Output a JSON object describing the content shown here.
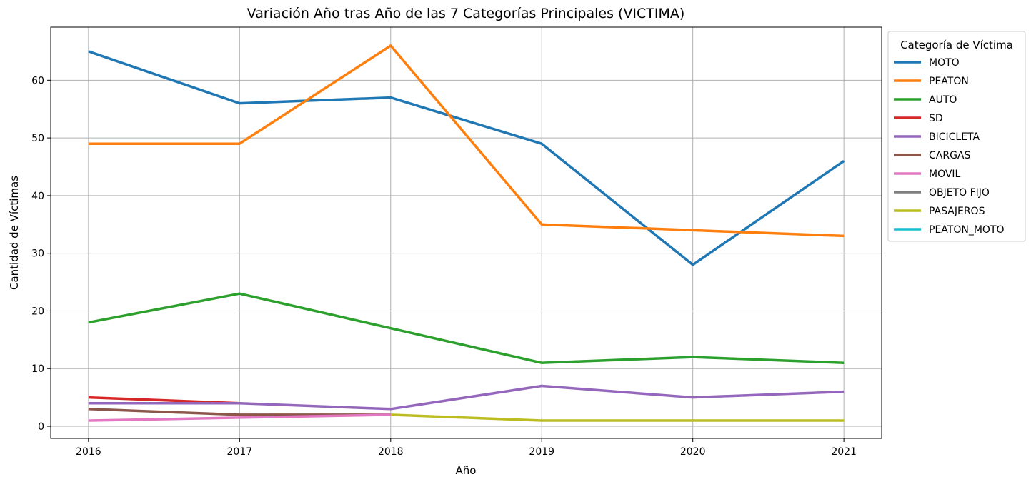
{
  "chart_data": {
    "type": "line",
    "title": "Variación Año tras Año de las 7 Categorías Principales (VICTIMA)",
    "xlabel": "Año",
    "ylabel": "Cantidad de Víctimas",
    "x": [
      2016,
      2017,
      2018,
      2019,
      2020,
      2021
    ],
    "x_tick_labels": [
      "2016",
      "2017",
      "2018",
      "2019",
      "2020",
      "2021"
    ],
    "y_ticks": [
      0,
      10,
      20,
      30,
      40,
      50,
      60
    ],
    "y_tick_labels": [
      "0",
      "10",
      "20",
      "30",
      "40",
      "50",
      "60"
    ],
    "xlim": [
      2015.75,
      2021.25
    ],
    "ylim": [
      -2.1,
      69.2
    ],
    "grid": true,
    "legend": {
      "title": "Categoría de Víctima",
      "placement": "outside-upper-right"
    },
    "series": [
      {
        "name": "MOTO",
        "color": "#1f77b4",
        "points": [
          [
            2016,
            65
          ],
          [
            2017,
            56
          ],
          [
            2018,
            57
          ],
          [
            2019,
            49
          ],
          [
            2020,
            28
          ],
          [
            2021,
            46
          ]
        ]
      },
      {
        "name": "PEATON",
        "color": "#ff7f0e",
        "points": [
          [
            2016,
            49
          ],
          [
            2017,
            49
          ],
          [
            2018,
            66
          ],
          [
            2019,
            35
          ],
          [
            2020,
            34
          ],
          [
            2021,
            33
          ]
        ]
      },
      {
        "name": "AUTO",
        "color": "#2ca02c",
        "points": [
          [
            2016,
            18
          ],
          [
            2017,
            23
          ],
          [
            2018,
            17
          ],
          [
            2019,
            11
          ],
          [
            2020,
            12
          ],
          [
            2021,
            11
          ]
        ]
      },
      {
        "name": "SD",
        "color": "#d62728",
        "points": [
          [
            2016,
            5
          ],
          [
            2017,
            4
          ]
        ]
      },
      {
        "name": "BICICLETA",
        "color": "#9467bd",
        "points": [
          [
            2016,
            4
          ],
          [
            2017,
            4
          ],
          [
            2018,
            3
          ],
          [
            2019,
            7
          ],
          [
            2020,
            5
          ],
          [
            2021,
            6
          ]
        ]
      },
      {
        "name": "CARGAS",
        "color": "#8c564b",
        "points": [
          [
            2016,
            3
          ],
          [
            2017,
            2
          ],
          [
            2018,
            2
          ]
        ]
      },
      {
        "name": "MOVIL",
        "color": "#e377c2",
        "points": [
          [
            2016,
            1
          ],
          [
            2017,
            1.5
          ],
          [
            2018,
            2
          ]
        ]
      },
      {
        "name": "OBJETO FIJO",
        "color": "#7f7f7f",
        "points": []
      },
      {
        "name": "PASAJEROS",
        "color": "#bcbd22",
        "points": [
          [
            2018,
            2
          ],
          [
            2019,
            1
          ],
          [
            2020,
            1
          ],
          [
            2021,
            1
          ]
        ]
      },
      {
        "name": "PEATON_MOTO",
        "color": "#17becf",
        "points": []
      }
    ]
  }
}
